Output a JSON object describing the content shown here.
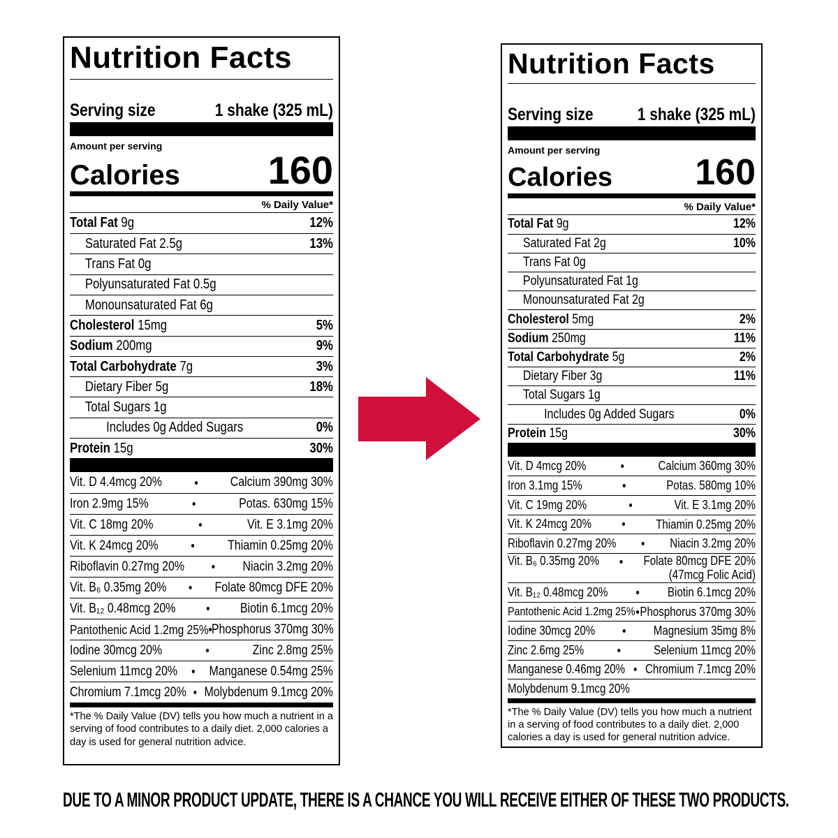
{
  "labels": [
    {
      "title": "Nutrition Facts",
      "serving_size_label": "Serving size",
      "serving_size": "1 shake (325 mL)",
      "amount_per_serving": "Amount per serving",
      "calories_label": "Calories",
      "calories": 160,
      "daily_value_header": "% Daily Value*",
      "nutrients": [
        {
          "name": "Total Fat",
          "amount": "9g",
          "dv": "12%",
          "sub": [
            {
              "name": "Saturated Fat",
              "amount": "2.5g",
              "dv": "13%"
            },
            {
              "name": "Trans Fat",
              "amount": "0g"
            },
            {
              "name": "Polyunsaturated Fat",
              "amount": "0.5g"
            },
            {
              "name": "Monounsaturated Fat",
              "amount": "6g"
            }
          ]
        },
        {
          "name": "Cholesterol",
          "amount": "15mg",
          "dv": "5%"
        },
        {
          "name": "Sodium",
          "amount": "200mg",
          "dv": "9%"
        },
        {
          "name": "Total Carbohydrate",
          "amount": "7g",
          "dv": "3%",
          "sub": [
            {
              "name": "Dietary Fiber",
              "amount": "5g",
              "dv": "18%"
            },
            {
              "name": "Total Sugars",
              "amount": "1g",
              "sub": [
                {
                  "name": "Includes 0g Added Sugars",
                  "dv": "0%"
                }
              ]
            }
          ]
        },
        {
          "name": "Protein",
          "amount": "15g",
          "dv": "30%"
        }
      ],
      "vitamins": [
        {
          "left": "Vit. D 4.4mcg 20%",
          "right": "Calcium 390mg 30%"
        },
        {
          "left": "Iron 2.9mg 15%",
          "right": "Potas. 630mg 15%"
        },
        {
          "left": "Vit. C 18mg 20%",
          "right": "Vit. E 3.1mg 20%"
        },
        {
          "left": "Vit. K 24mcg 20%",
          "right": "Thiamin 0.25mg 20%"
        },
        {
          "left": "Riboflavin 0.27mg 20%",
          "right": "Niacin 3.2mg 20%"
        },
        {
          "left": "Vit. B₆ 0.35mg 20%",
          "right": "Folate 80mcg DFE 20%"
        },
        {
          "left": "Vit. B₁₂ 0.48mcg 20%",
          "right": "Biotin 6.1mcg 20%"
        },
        {
          "left": "Pantothenic Acid 1.2mg 25%",
          "right": "Phosphorus 370mg 30%"
        },
        {
          "left": "Iodine 30mcg 20%",
          "right": "Zinc 2.8mg 25%"
        },
        {
          "left": "Selenium 11mcg 20%",
          "right": "Manganese 0.54mg 25%"
        },
        {
          "left": "Chromium 7.1mcg 20%",
          "right": "Molybdenum 9.1mcg 20%"
        }
      ],
      "footnote": "*The % Daily Value (DV) tells you how much a nutrient in a serving of food contributes to a daily diet. 2,000 calories a day is used for general nutrition advice."
    },
    {
      "title": "Nutrition Facts",
      "serving_size_label": "Serving size",
      "serving_size": "1 shake (325 mL)",
      "amount_per_serving": "Amount per serving",
      "calories_label": "Calories",
      "calories": 160,
      "daily_value_header": "% Daily Value*",
      "nutrients": [
        {
          "name": "Total Fat",
          "amount": "9g",
          "dv": "12%",
          "sub": [
            {
              "name": "Saturated Fat",
              "amount": "2g",
              "dv": "10%"
            },
            {
              "name": "Trans Fat",
              "amount": "0g"
            },
            {
              "name": "Polyunsaturated Fat",
              "amount": "1g"
            },
            {
              "name": "Monounsaturated Fat",
              "amount": "2g"
            }
          ]
        },
        {
          "name": "Cholesterol",
          "amount": "5mg",
          "dv": "2%"
        },
        {
          "name": "Sodium",
          "amount": "250mg",
          "dv": "11%"
        },
        {
          "name": "Total Carbohydrate",
          "amount": "5g",
          "dv": "2%",
          "sub": [
            {
              "name": "Dietary Fiber",
              "amount": "3g",
              "dv": "11%"
            },
            {
              "name": "Total Sugars",
              "amount": "1g",
              "sub": [
                {
                  "name": "Includes 0g Added Sugars",
                  "dv": "0%"
                }
              ]
            }
          ]
        },
        {
          "name": "Protein",
          "amount": "15g",
          "dv": "30%"
        }
      ],
      "vitamins": [
        {
          "left": "Vit. D 4mcg 20%",
          "right": "Calcium 360mg 30%"
        },
        {
          "left": "Iron 3.1mg 15%",
          "right": "Potas. 580mg 10%"
        },
        {
          "left": "Vit. C 19mg 20%",
          "right": "Vit. E 3.1mg 20%"
        },
        {
          "left": "Vit. K 24mcg 20%",
          "right": "Thiamin 0.25mg 20%"
        },
        {
          "left": "Riboflavin 0.27mg 20%",
          "right": "Niacin 3.2mg 20%"
        },
        {
          "left": "Vit. B₆ 0.35mg 20%",
          "right": "Folate 80mcg DFE 20%",
          "note": "(47mcg Folic Acid)"
        },
        {
          "left": "Vit. B₁₂ 0.48mcg 20%",
          "right": "Biotin 6.1mcg 20%"
        },
        {
          "left": "Pantothenic Acid 1.2mg 25%",
          "right": "Phosphorus 370mg 30%"
        },
        {
          "left": "Iodine 30mcg 20%",
          "right": "Magnesium 35mg 8%"
        },
        {
          "left": "Zinc 2.6mg 25%",
          "right": "Selenium 11mcg 20%"
        },
        {
          "left": "Manganese 0.46mg 20%",
          "right": "Chromium 7.1mcg 20%"
        },
        {
          "left": "Molybdenum 9.1mcg 20%"
        }
      ],
      "footnote": "*The % Daily Value (DV) tells you how much a nutrient in a serving of food contributes to a daily diet. 2,000 calories a day is used for general nutrition advice."
    }
  ],
  "notice": "DUE TO A MINOR PRODUCT UPDATE, THERE IS A CHANCE YOU WILL RECEIVE EITHER OF THESE TWO PRODUCTS."
}
